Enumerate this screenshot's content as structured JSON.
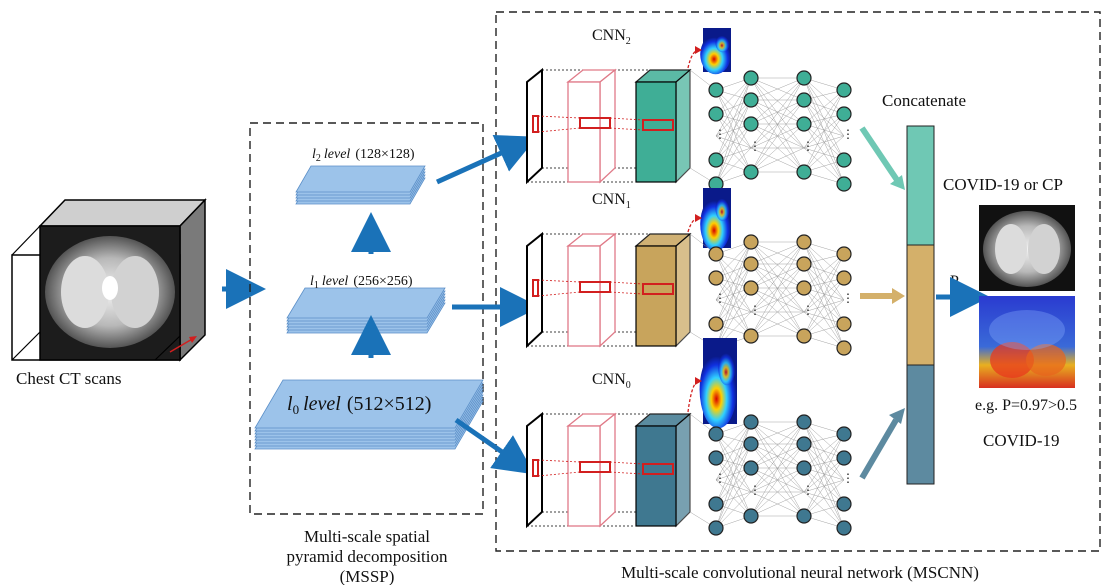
{
  "input": {
    "label": "Chest CT scans"
  },
  "mssp": {
    "caption_line1": "Multi-scale spatial",
    "caption_line2": "pyramid decomposition",
    "caption_line3": "(MSSP)",
    "levels": [
      {
        "id": "l2",
        "sym": "l",
        "sub": "2",
        "word": "level",
        "size": "(128×128)"
      },
      {
        "id": "l1",
        "sym": "l",
        "sub": "1",
        "word": "level",
        "size": "(256×256)"
      },
      {
        "id": "l0",
        "sym": "l",
        "sub": "0",
        "word": "level",
        "size": "(512×512)"
      }
    ]
  },
  "mscnn": {
    "caption": "Multi-scale convolutional neural network (MSCNN)",
    "branches": [
      {
        "id": "cnn2",
        "name": "CNN",
        "sub": "2",
        "color": "#3fae96"
      },
      {
        "id": "cnn1",
        "name": "CNN",
        "sub": "1",
        "color": "#c8a45c"
      },
      {
        "id": "cnn0",
        "name": "CNN",
        "sub": "0",
        "color": "#3f7890"
      }
    ]
  },
  "concat": {
    "label": "Concatenate",
    "colors": [
      "#6fc8b4",
      "#d4b06a",
      "#5d8aa0"
    ]
  },
  "output": {
    "title": "COVID-19 or CP",
    "p_label": "P",
    "example": "e.g. P=0.97>0.5",
    "result": "COVID-19"
  },
  "colors": {
    "arrow": "#1a72b8",
    "pyramid": "#9cc3ea",
    "pyramid_edge": "#5b8fc8",
    "kernel_red": "#d21f1f",
    "box_pink": "#e07a88"
  }
}
